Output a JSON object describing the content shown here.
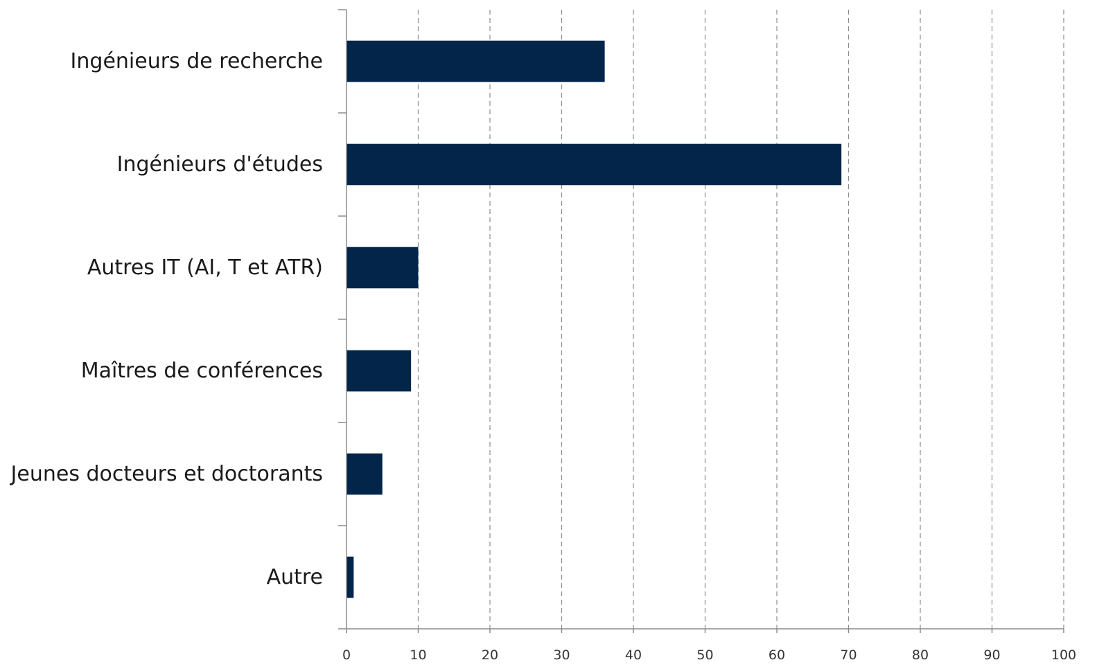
{
  "chart_data": {
    "type": "bar",
    "orientation": "horizontal",
    "title": "",
    "xlabel": "",
    "ylabel": "",
    "categories": [
      "Ingénieurs de recherche",
      "Ingénieurs d'études",
      "Autres IT (AI, T et ATR)",
      "Maîtres de conférences",
      "Jeunes docteurs et doctorants",
      "Autre"
    ],
    "values": [
      36,
      69,
      10,
      9,
      5,
      1
    ],
    "xlim": [
      0,
      100
    ],
    "xticks": [
      0,
      10,
      20,
      30,
      40,
      50,
      60,
      70,
      80,
      90,
      100
    ],
    "grid": "vertical dashed",
    "legend": "none",
    "bar_color": "#03254a"
  }
}
